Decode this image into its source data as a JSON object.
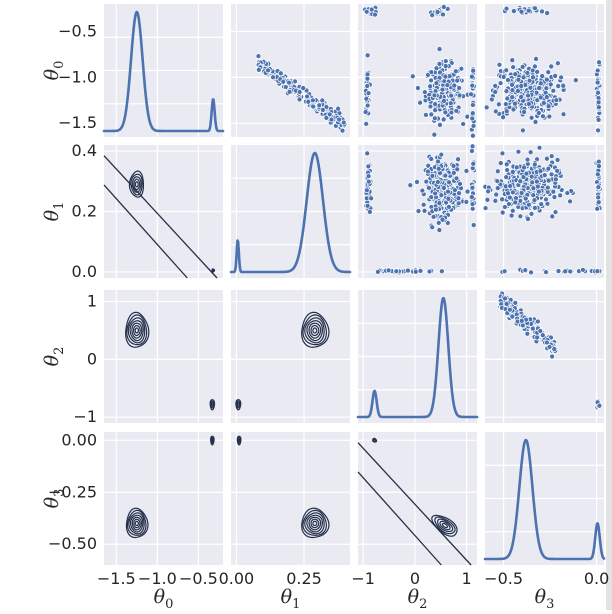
{
  "chart_data": {
    "type": "scatter",
    "title": "",
    "variables": [
      {
        "symbol": "θ",
        "sub": "0",
        "ticks": [
          "−1.5",
          "−1.0",
          "−0.5"
        ],
        "tick_values": [
          -1.5,
          -1.0,
          -0.5
        ],
        "range": [
          -1.65,
          -0.2
        ]
      },
      {
        "symbol": "θ",
        "sub": "1",
        "ticks": [
          "0.0",
          "0.2",
          "0.4"
        ],
        "ticks_x": [
          "0.00",
          "0.25"
        ],
        "tick_values": [
          0.0,
          0.2,
          0.4
        ],
        "tick_values_x": [
          0.0,
          0.25
        ],
        "range": [
          -0.02,
          0.42
        ]
      },
      {
        "symbol": "θ",
        "sub": "2",
        "ticks": [
          "−1",
          "0",
          "1"
        ],
        "tick_values": [
          -1,
          0,
          1
        ],
        "range": [
          -1.1,
          1.2
        ]
      },
      {
        "symbol": "θ",
        "sub": "3",
        "ticks": [
          "−0.50",
          "−0.25",
          "0.00"
        ],
        "ticks_x": [
          "−0.5",
          "0.0"
        ],
        "tick_values": [
          -0.5,
          -0.25,
          0.0
        ],
        "tick_values_x": [
          -0.5,
          0.0
        ],
        "range": [
          -0.6,
          0.04
        ]
      }
    ],
    "x_ticks": [
      [
        "−1.5",
        "−1.0",
        "−0.5"
      ],
      [
        "0.00",
        "0.25"
      ],
      [
        "−1",
        "0",
        "1"
      ],
      [
        "−0.5",
        "0.0"
      ]
    ],
    "diagonal": "kde",
    "upper": "scatter",
    "lower": "kde_contour",
    "grid": true,
    "series_color": "#4c72b0",
    "contour_color": "#23304b",
    "background_color": "#eaeaf2"
  }
}
